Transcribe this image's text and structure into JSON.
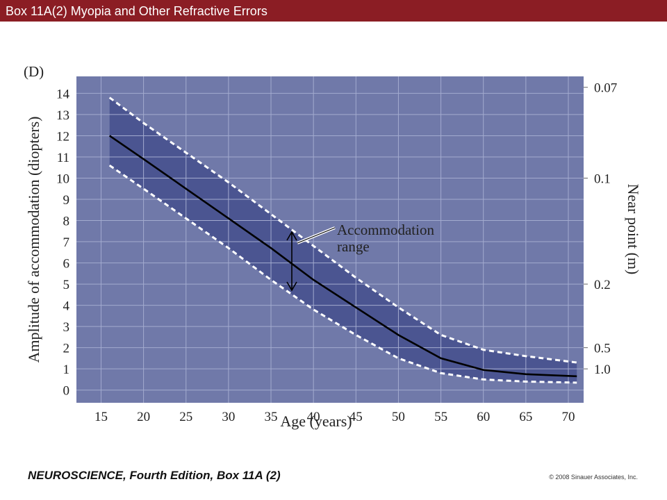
{
  "header": {
    "title": "Box 11A(2)  Myopia and Other Refractive Errors"
  },
  "footer": {
    "book": "NEUROSCIENCE, Fourth Edition, Box 11A (2)",
    "copyright": "© 2008 Sinauer Associates, Inc."
  },
  "chart_data": {
    "type": "line",
    "panel_label": "(D)",
    "x_label": "Age (years)",
    "y_label": "Amplitude of accommodation (diopters)",
    "y2_label": "Near point (m)",
    "y2_scale": "reciprocal",
    "annotation": "Accommodation range",
    "x": [
      16,
      20,
      25,
      30,
      35,
      40,
      45,
      50,
      55,
      60,
      65,
      71
    ],
    "series": [
      {
        "color": "#000000",
        "dashed": false,
        "values": [
          12.0,
          10.9,
          9.5,
          8.1,
          6.7,
          5.2,
          3.9,
          2.6,
          1.5,
          0.95,
          0.75,
          0.65
        ]
      },
      {
        "color": "#ffffff",
        "dashed": true,
        "values": [
          13.8,
          12.6,
          11.2,
          9.8,
          8.3,
          6.8,
          5.3,
          3.9,
          2.6,
          1.9,
          1.6,
          1.3
        ]
      },
      {
        "color": "#ffffff",
        "dashed": true,
        "values": [
          10.6,
          9.5,
          8.1,
          6.7,
          5.2,
          3.8,
          2.6,
          1.5,
          0.8,
          0.5,
          0.4,
          0.35
        ]
      }
    ],
    "band_between": [
      1,
      2
    ],
    "band_color": "#4b5591",
    "background": "#7079a9",
    "grid": true,
    "xlim": [
      12.1,
      71.8
    ],
    "ylim": [
      -0.6,
      14.8
    ],
    "xticks": [
      15,
      20,
      25,
      30,
      35,
      40,
      45,
      50,
      55,
      60,
      65,
      70
    ],
    "yticks": [
      0,
      1,
      2,
      3,
      4,
      5,
      6,
      7,
      8,
      9,
      10,
      11,
      12,
      13,
      14
    ],
    "y2ticks": [
      0.07,
      0.1,
      0.2,
      0.5,
      {
        "value": 1,
        "label": "1.0"
      }
    ]
  }
}
